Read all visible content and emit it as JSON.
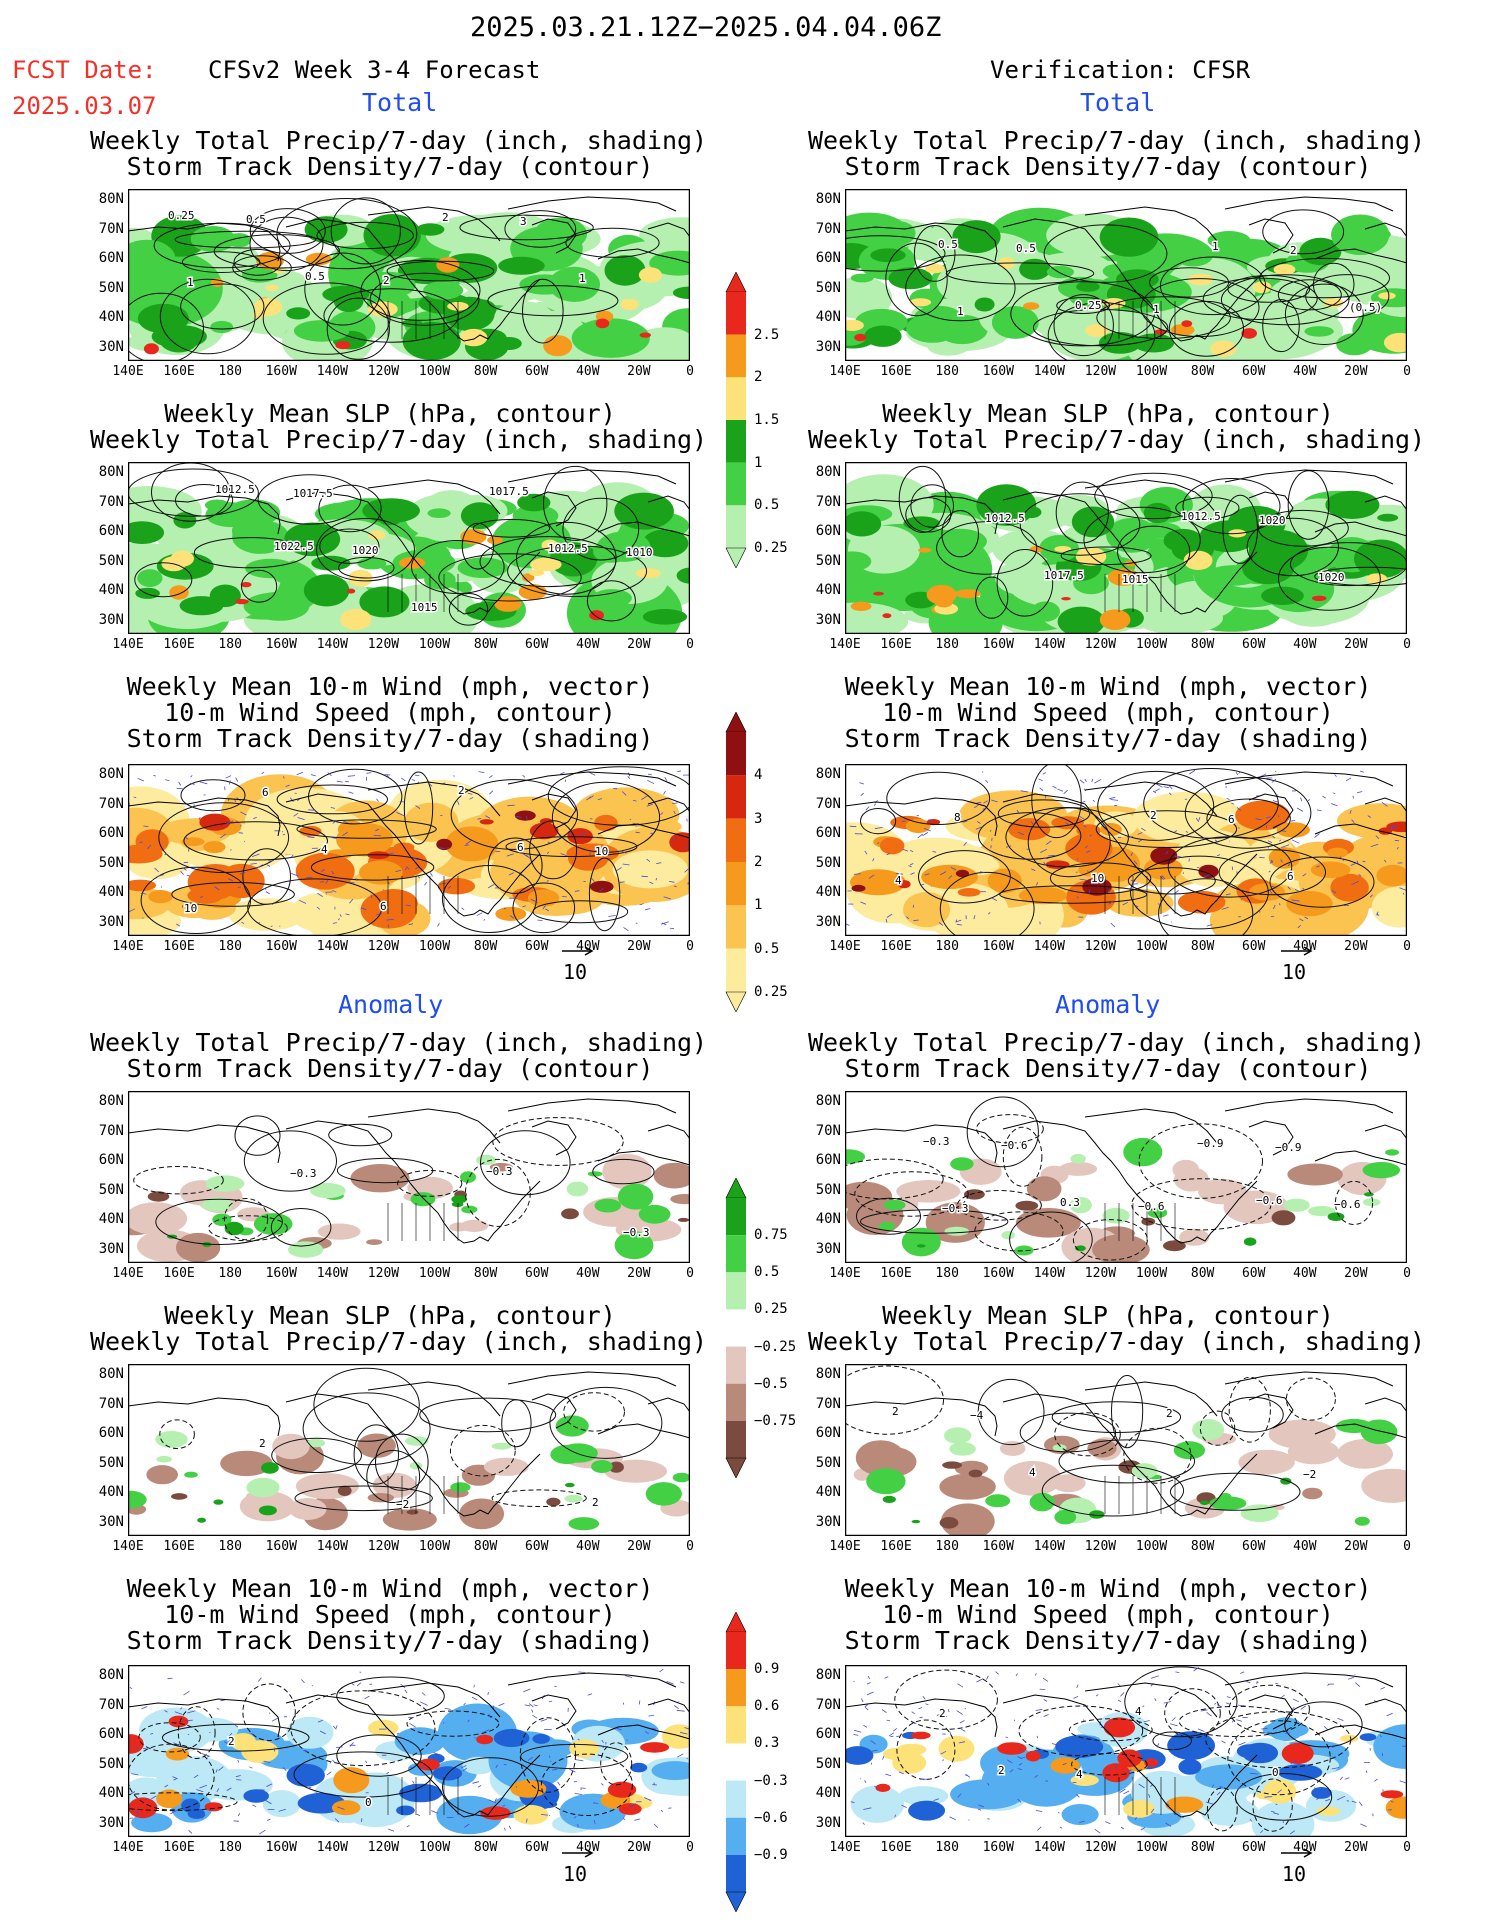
{
  "header": {
    "period": "2025.03.21.12Z−2025.04.04.06Z",
    "fcst_label": "FCST Date:",
    "fcst_date": "2025.03.07",
    "model_title": "CFSv2 Week 3-4 Forecast",
    "verif_title": "Verification: CFSR"
  },
  "sections": {
    "total": "Total",
    "anomaly": "Anomaly"
  },
  "panel_titles": {
    "precip_track": "Weekly Total Precip/7-day (inch, shading)\nStorm Track Density/7-day (contour)",
    "slp_precip": "Weekly Mean SLP (hPa, contour)\nWeekly Total Precip/7-day (inch, shading)",
    "wind_track": "Weekly Mean 10-m Wind (mph, vector)\n10-m Wind Speed (mph, contour)\nStorm Track Density/7-day (shading)"
  },
  "axes": {
    "lat_ticks": [
      "80N",
      "70N",
      "60N",
      "50N",
      "40N",
      "30N"
    ],
    "lon_ticks": [
      "140E",
      "160E",
      "180",
      "160W",
      "140W",
      "120W",
      "100W",
      "80W",
      "60W",
      "40W",
      "20W",
      "0"
    ]
  },
  "colorbars": {
    "precip_total": {
      "labels": [
        "2.5",
        "2",
        "1.5",
        "1",
        "0.5",
        "0.25"
      ],
      "colors": [
        "#e8281c",
        "#f59a1c",
        "#fde27a",
        "#1aa31a",
        "#44d044",
        "#b5f0b0"
      ]
    },
    "track_total": {
      "labels": [
        "4",
        "3",
        "2",
        "1",
        "0.5",
        "0.25"
      ],
      "colors": [
        "#8e1010",
        "#d6280e",
        "#f06d12",
        "#f59a1c",
        "#fbc350",
        "#fdeb9e"
      ]
    },
    "precip_anom": {
      "labels": [
        "0.75",
        "0.5",
        "0.25",
        "−0.25",
        "−0.5",
        "−0.75"
      ],
      "colors": [
        "#1aa31a",
        "#44d044",
        "#b5f0b0",
        "#ffffff",
        "#e3c6bd",
        "#b98a7a",
        "#7a4b3e"
      ]
    },
    "track_anom": {
      "labels": [
        "0.9",
        "0.6",
        "0.3",
        "−0.3",
        "−0.6",
        "−0.9"
      ],
      "colors": [
        "#e8281c",
        "#f59a1c",
        "#fde27a",
        "#ffffff",
        "#bde8f5",
        "#55aef0",
        "#1f62d6"
      ]
    }
  },
  "vector_ref": "10",
  "palette": {
    "green_dark": "#1aa31a",
    "green": "#44d044",
    "green_light": "#b5f0b0",
    "orange": "#f59a1c",
    "yellow": "#fde27a",
    "red": "#e8281c",
    "brown_light": "#e3c6bd",
    "brown": "#b98a7a",
    "brown_dark": "#7a4b3e",
    "blue_light": "#bde8f5",
    "blue": "#55aef0",
    "blue_dark": "#1f62d6",
    "vector": "#4a4ad8"
  },
  "contour_labels": {
    "p1": [
      "0.25",
      "0.5",
      "2",
      "1",
      "0.5",
      "2",
      "3",
      "1"
    ],
    "p2": [
      "0.5",
      "0.25",
      "1",
      "(0.5)",
      "0.5",
      "1",
      "2",
      "1"
    ],
    "p3": [
      "1022.5",
      "1015",
      "1012.5",
      "1012.5",
      "1020",
      "1017.5",
      "1010",
      "1017.5"
    ],
    "p4": [
      "1017.5",
      "1012.5",
      "1020",
      "1012.5",
      "1015",
      "1020"
    ],
    "p5": [
      "6",
      "6",
      "10",
      "4",
      "2",
      "10",
      "6"
    ],
    "p6": [
      "2",
      "6",
      "8",
      "10",
      "6",
      "4"
    ],
    "p7": [
      "−0.3",
      "−0.3",
      "−0.3"
    ],
    "p8": [
      "−0.6",
      "−0.3",
      "0.3",
      "−0.9",
      "−0.6",
      "−0.6",
      "−0.6",
      "−0.9",
      "−0.3"
    ],
    "p9": [
      "2",
      "2",
      "−2"
    ],
    "p10": [
      "2",
      "4",
      "2",
      "−2",
      "−4"
    ],
    "p11": [
      "2",
      "0"
    ],
    "p12": [
      "2",
      "4",
      "0",
      "2",
      "4"
    ]
  }
}
